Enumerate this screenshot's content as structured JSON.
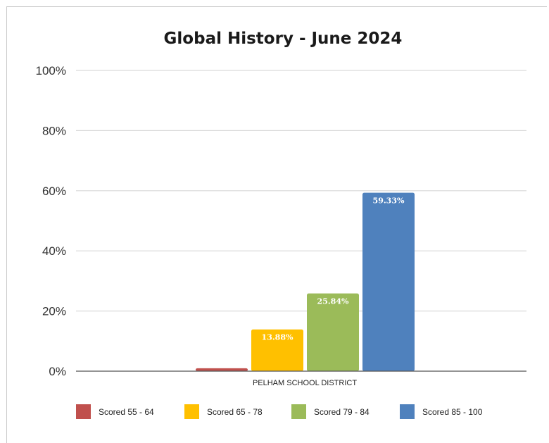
{
  "chart_data": {
    "type": "bar",
    "title": "Global History - June 2024",
    "xlabel": "",
    "ylabel": "",
    "ylim": [
      0,
      100
    ],
    "yticks": [
      "0%",
      "20%",
      "40%",
      "60%",
      "80%",
      "100%"
    ],
    "grid": true,
    "legend_position": "bottom",
    "categories": [
      "PELHAM SCHOOL DISTRICT"
    ],
    "series": [
      {
        "name": "Scored 55 - 64",
        "color": "#c0504d",
        "values": [
          0.96
        ],
        "label": ""
      },
      {
        "name": "Scored 65 - 78",
        "color": "#ffc000",
        "values": [
          13.88
        ],
        "label": "13.88%"
      },
      {
        "name": "Scored 79 - 84",
        "color": "#9bbb59",
        "values": [
          25.84
        ],
        "label": "25.84%"
      },
      {
        "name": "Scored 85 - 100",
        "color": "#4f81bd",
        "values": [
          59.33
        ],
        "label": "59.33%"
      }
    ]
  }
}
